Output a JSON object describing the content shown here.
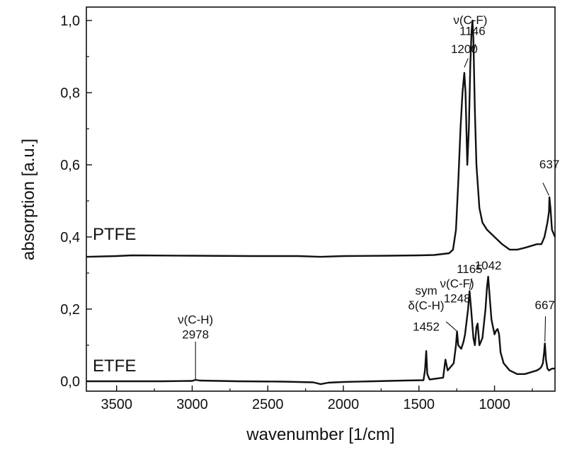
{
  "chart_data": {
    "type": "line",
    "xlabel": "wavenumber [1/cm]",
    "ylabel": "absorption [a.u.]",
    "xlim": [
      3700,
      600
    ],
    "ylim": [
      -0.02,
      1.02
    ],
    "x_reversed": true,
    "grid": false,
    "legend": "none",
    "xticks": [
      3500,
      3000,
      2500,
      2000,
      1500,
      1000
    ],
    "xtick_labels": [
      "3500",
      "3000",
      "2500",
      "2000",
      "1500",
      "1000"
    ],
    "yticks": [
      0.0,
      0.2,
      0.4,
      0.6,
      0.8,
      1.0
    ],
    "ytick_labels": [
      "0,0",
      "0,2",
      "0,4",
      "0,6",
      "0,8",
      "1,0"
    ],
    "series": [
      {
        "name": "PTFE",
        "x": [
          3700,
          3500,
          3400,
          3000,
          2600,
          2300,
          2150,
          2000,
          1700,
          1500,
          1400,
          1300,
          1275,
          1255,
          1240,
          1225,
          1212,
          1200,
          1192,
          1180,
          1170,
          1160,
          1152,
          1146,
          1140,
          1130,
          1120,
          1100,
          1080,
          1050,
          1000,
          950,
          900,
          850,
          800,
          760,
          720,
          690,
          670,
          650,
          640,
          637,
          630,
          620,
          600
        ],
        "values": [
          0.345,
          0.347,
          0.349,
          0.348,
          0.347,
          0.347,
          0.345,
          0.347,
          0.348,
          0.349,
          0.35,
          0.355,
          0.365,
          0.42,
          0.55,
          0.7,
          0.8,
          0.855,
          0.8,
          0.6,
          0.7,
          0.88,
          0.97,
          1.0,
          0.95,
          0.75,
          0.6,
          0.48,
          0.44,
          0.42,
          0.4,
          0.38,
          0.365,
          0.365,
          0.37,
          0.375,
          0.38,
          0.38,
          0.4,
          0.44,
          0.47,
          0.51,
          0.48,
          0.42,
          0.4
        ]
      },
      {
        "name": "ETFE",
        "x": [
          3700,
          3200,
          3000,
          2978,
          2950,
          2700,
          2400,
          2300,
          2200,
          2150,
          2100,
          2000,
          1800,
          1600,
          1470,
          1460,
          1452,
          1445,
          1430,
          1340,
          1325,
          1310,
          1270,
          1255,
          1248,
          1240,
          1220,
          1205,
          1195,
          1175,
          1165,
          1155,
          1140,
          1130,
          1120,
          1112,
          1100,
          1080,
          1060,
          1050,
          1042,
          1035,
          1020,
          1000,
          990,
          980,
          970,
          960,
          940,
          900,
          850,
          800,
          760,
          720,
          700,
          690,
          680,
          672,
          667,
          660,
          650,
          640,
          620,
          600
        ],
        "values": [
          0.0,
          0.0,
          0.001,
          0.004,
          0.002,
          0.0,
          -0.001,
          -0.002,
          -0.003,
          -0.008,
          -0.004,
          -0.002,
          0.0,
          0.002,
          0.003,
          0.03,
          0.084,
          0.02,
          0.005,
          0.01,
          0.06,
          0.03,
          0.05,
          0.1,
          0.138,
          0.1,
          0.09,
          0.11,
          0.13,
          0.2,
          0.25,
          0.2,
          0.12,
          0.1,
          0.15,
          0.16,
          0.1,
          0.12,
          0.2,
          0.26,
          0.29,
          0.25,
          0.17,
          0.13,
          0.14,
          0.145,
          0.13,
          0.08,
          0.05,
          0.03,
          0.02,
          0.02,
          0.025,
          0.03,
          0.035,
          0.04,
          0.05,
          0.08,
          0.105,
          0.06,
          0.035,
          0.03,
          0.035,
          0.035
        ]
      }
    ],
    "annotations": [
      {
        "lines": [
          "ν(C-F)"
        ],
        "x": 1160,
        "y": 0.99
      },
      {
        "lines": [
          "1146"
        ],
        "x": 1146,
        "y": 0.96
      },
      {
        "lines": [
          "1200"
        ],
        "x": 1200,
        "y": 0.91
      },
      {
        "lines": [
          "637"
        ],
        "x": 637,
        "y": 0.59
      },
      {
        "lines": [
          "1165"
        ],
        "x": 1165,
        "y": 0.3
      },
      {
        "lines": [
          "1042"
        ],
        "x": 1042,
        "y": 0.31
      },
      {
        "lines": [
          "ν(C-F)",
          "1248"
        ],
        "x": 1248,
        "y": 0.26
      },
      {
        "lines": [
          "sym",
          "δ(C-H)"
        ],
        "x": 1452,
        "y": 0.24
      },
      {
        "lines": [
          "1452"
        ],
        "x": 1452,
        "y": 0.14
      },
      {
        "lines": [
          "667"
        ],
        "x": 667,
        "y": 0.2
      },
      {
        "lines": [
          "ν(C-H)",
          "2978"
        ],
        "x": 2978,
        "y": 0.16
      }
    ]
  }
}
